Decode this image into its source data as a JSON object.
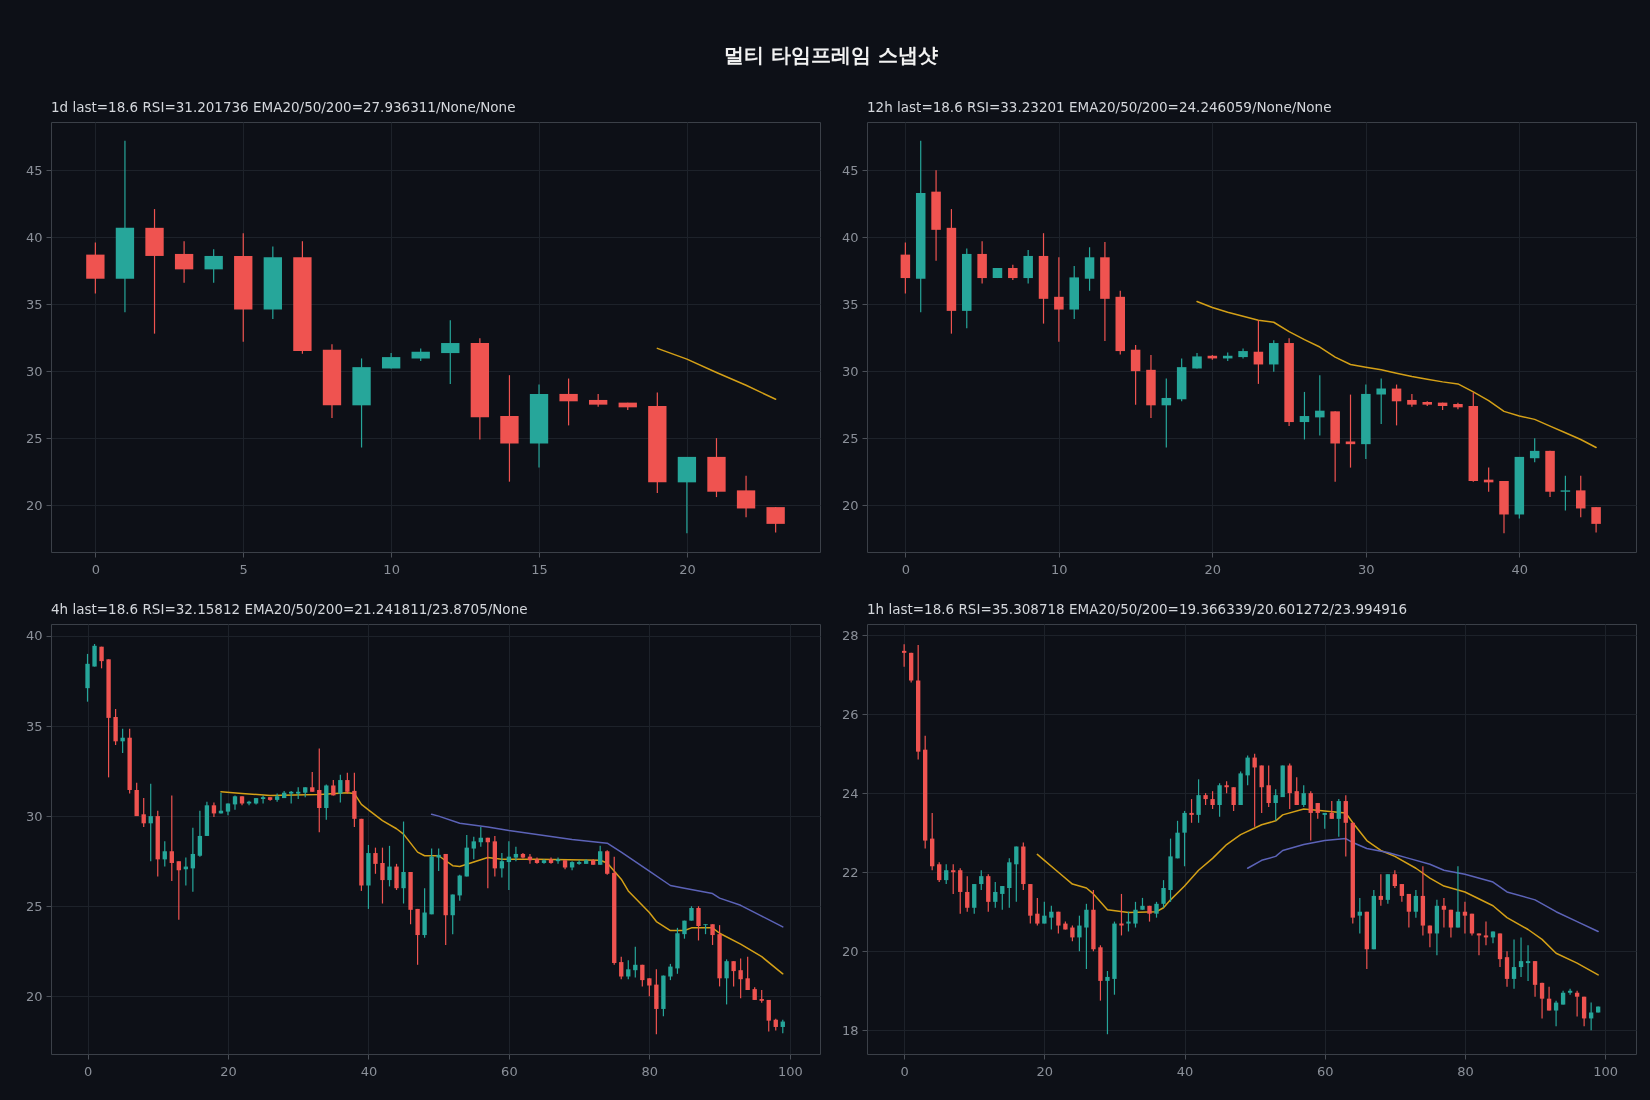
{
  "chart_data": [
    {
      "type": "other",
      "title": "멀티 타임프레임 스냅샷"
    },
    {
      "type": "candlestick",
      "title": "1d  last=18.6  RSI=31.201736  EMA20/50/200=27.936311/None/None",
      "grid": true,
      "xlim": [
        -1.5,
        24.5
      ],
      "ylim": [
        16.5,
        48.6
      ],
      "xticks": [
        0,
        5,
        10,
        15,
        20
      ],
      "yticks": [
        20,
        25,
        30,
        35,
        40,
        45
      ],
      "x": [
        0,
        1,
        2,
        3,
        4,
        5,
        6,
        7,
        8,
        9,
        10,
        11,
        12,
        13,
        14,
        15,
        16,
        17,
        18,
        19,
        20,
        21,
        22,
        23
      ],
      "ohlc": [
        [
          38.7,
          39.6,
          35.8,
          36.9
        ],
        [
          36.9,
          47.2,
          34.4,
          40.7
        ],
        [
          40.7,
          42.1,
          32.8,
          38.6
        ],
        [
          38.75,
          39.7,
          36.6,
          37.6
        ],
        [
          37.6,
          39.1,
          36.6,
          38.6
        ],
        [
          38.6,
          40.3,
          32.2,
          34.6
        ],
        [
          34.6,
          39.3,
          33.9,
          38.5
        ],
        [
          38.5,
          39.7,
          31.3,
          31.5
        ],
        [
          31.6,
          32.0,
          26.5,
          27.45
        ],
        [
          27.45,
          30.95,
          24.3,
          30.3
        ],
        [
          30.2,
          31.35,
          30.2,
          31.05
        ],
        [
          30.95,
          31.7,
          30.75,
          31.45
        ],
        [
          31.35,
          33.8,
          29.05,
          32.1
        ],
        [
          32.1,
          32.45,
          24.9,
          26.55
        ],
        [
          26.65,
          29.7,
          21.75,
          24.6
        ],
        [
          24.6,
          29.0,
          22.8,
          28.3
        ],
        [
          28.3,
          29.45,
          25.95,
          27.75
        ],
        [
          27.85,
          28.3,
          27.35,
          27.5
        ],
        [
          27.65,
          27.65,
          27.1,
          27.3
        ],
        [
          27.4,
          28.4,
          20.9,
          21.7
        ],
        [
          21.7,
          23.6,
          17.9,
          23.6
        ],
        [
          23.6,
          25.0,
          20.6,
          21.0
        ],
        [
          21.1,
          22.2,
          19.1,
          19.75
        ],
        [
          19.85,
          19.85,
          17.95,
          18.6
        ]
      ],
      "series": [
        {
          "type": "line",
          "color": "#d4a017",
          "x": [
            19,
            20,
            21,
            22,
            23
          ],
          "values": [
            31.7,
            30.9,
            29.9,
            28.95,
            27.9
          ]
        }
      ]
    },
    {
      "type": "candlestick",
      "title": "12h  last=18.6  RSI=33.23201  EMA20/50/200=24.246059/None/None",
      "grid": true,
      "xlim": [
        -2.5,
        47.6
      ],
      "ylim": [
        16.5,
        48.6
      ],
      "xticks": [
        0,
        10,
        20,
        30,
        40
      ],
      "yticks": [
        20,
        25,
        30,
        35,
        40,
        45
      ],
      "x": [
        0,
        1,
        2,
        3,
        4,
        5,
        6,
        7,
        8,
        9,
        10,
        11,
        12,
        13,
        14,
        15,
        16,
        17,
        18,
        19,
        20,
        21,
        22,
        23,
        24,
        25,
        26,
        27,
        28,
        29,
        30,
        31,
        32,
        33,
        34,
        35,
        36,
        37,
        38,
        39,
        40,
        41,
        42,
        43,
        44,
        45
      ],
      "ohlc": [
        [
          38.7,
          39.6,
          35.8,
          36.95
        ],
        [
          36.9,
          47.2,
          34.4,
          43.3
        ],
        [
          43.4,
          45.0,
          38.25,
          40.55
        ],
        [
          40.7,
          42.1,
          32.8,
          34.5
        ],
        [
          34.5,
          39.15,
          33.2,
          38.75
        ],
        [
          38.75,
          39.7,
          36.55,
          36.95
        ],
        [
          36.95,
          37.7,
          36.95,
          37.7
        ],
        [
          37.7,
          37.95,
          36.8,
          36.95
        ],
        [
          36.95,
          39.05,
          36.55,
          38.6
        ],
        [
          38.6,
          40.3,
          33.55,
          35.4
        ],
        [
          35.55,
          38.5,
          32.2,
          34.6
        ],
        [
          34.6,
          37.85,
          33.9,
          37.0
        ],
        [
          36.9,
          39.25,
          36.0,
          38.5
        ],
        [
          38.5,
          39.65,
          32.25,
          35.4
        ],
        [
          35.55,
          36.0,
          31.25,
          31.5
        ],
        [
          31.6,
          31.95,
          27.5,
          30.0
        ],
        [
          30.1,
          31.2,
          26.5,
          27.45
        ],
        [
          27.45,
          29.45,
          24.3,
          28.0
        ],
        [
          27.9,
          30.95,
          27.75,
          30.3
        ],
        [
          30.2,
          31.35,
          30.2,
          31.1
        ],
        [
          31.15,
          31.2,
          30.85,
          30.95
        ],
        [
          30.95,
          31.4,
          30.75,
          31.15
        ],
        [
          31.05,
          31.7,
          30.95,
          31.5
        ],
        [
          31.45,
          33.8,
          29.05,
          30.5
        ],
        [
          30.5,
          32.3,
          29.95,
          32.1
        ],
        [
          32.1,
          32.45,
          25.9,
          26.2
        ],
        [
          26.2,
          28.45,
          24.9,
          26.65
        ],
        [
          26.55,
          29.7,
          25.2,
          27.05
        ],
        [
          27.0,
          27.0,
          21.75,
          24.6
        ],
        [
          24.75,
          28.25,
          22.8,
          24.55
        ],
        [
          24.55,
          29.0,
          23.45,
          28.3
        ],
        [
          28.25,
          29.45,
          26.05,
          28.7
        ],
        [
          28.7,
          29.0,
          25.95,
          27.75
        ],
        [
          27.85,
          28.3,
          27.35,
          27.5
        ],
        [
          27.7,
          27.75,
          27.4,
          27.5
        ],
        [
          27.65,
          27.65,
          27.1,
          27.4
        ],
        [
          27.55,
          27.65,
          27.15,
          27.3
        ],
        [
          27.4,
          28.4,
          21.75,
          21.8
        ],
        [
          21.9,
          22.8,
          21.0,
          21.7
        ],
        [
          21.8,
          21.8,
          17.9,
          19.3
        ],
        [
          19.3,
          23.6,
          19.0,
          23.6
        ],
        [
          23.5,
          25.0,
          23.2,
          24.05
        ],
        [
          24.05,
          24.05,
          20.6,
          21.0
        ],
        [
          21.0,
          22.2,
          19.6,
          21.1
        ],
        [
          21.1,
          22.2,
          19.1,
          19.75
        ],
        [
          19.85,
          19.85,
          17.95,
          18.6
        ]
      ],
      "series": [
        {
          "type": "line",
          "color": "#d4a017",
          "x": [
            19,
            20,
            21,
            22,
            23,
            24,
            25,
            26,
            27,
            28,
            29,
            30,
            31,
            32,
            33,
            34,
            35,
            36,
            37,
            38,
            39,
            40,
            41,
            42,
            43,
            44,
            45
          ],
          "values": [
            35.2,
            34.75,
            34.4,
            34.1,
            33.8,
            33.65,
            32.95,
            32.35,
            31.8,
            31.05,
            30.5,
            30.3,
            30.1,
            29.85,
            29.6,
            29.4,
            29.2,
            29.05,
            28.45,
            27.8,
            27.0,
            26.65,
            26.4,
            25.9,
            25.4,
            24.9,
            24.3
          ]
        }
      ]
    },
    {
      "type": "candlestick",
      "title": "4h  last=18.6  RSI=32.15812  EMA20/50/200=21.241811/23.8705/None",
      "grid": true,
      "xlim": [
        -5.2,
        104.3
      ],
      "ylim": [
        16.8,
        40.66
      ],
      "xticks": [
        0,
        20,
        40,
        60,
        80,
        100
      ],
      "yticks": [
        20,
        25,
        30,
        35,
        40
      ],
      "x": [
        0,
        1,
        2,
        3,
        4,
        5,
        6,
        7,
        8,
        9,
        10,
        11,
        12,
        13,
        14,
        15,
        16,
        17,
        18,
        19,
        20,
        21,
        22,
        23,
        24,
        25,
        26,
        27,
        28,
        29,
        30,
        31,
        32,
        33,
        34,
        35,
        36,
        37,
        38,
        39,
        40,
        41,
        42,
        43,
        44,
        45,
        46,
        47,
        48,
        49,
        50,
        51,
        52,
        53,
        54,
        55,
        56,
        57,
        58,
        59,
        60,
        61,
        62,
        63,
        64,
        65,
        66,
        67,
        68,
        69,
        70,
        71,
        72,
        73,
        74,
        75,
        76,
        77,
        78,
        79,
        80,
        81,
        82,
        83,
        84,
        85,
        86,
        87,
        88,
        89,
        90,
        91,
        92,
        93,
        94,
        95,
        96,
        97,
        98,
        99
      ],
      "ohlc": [
        [
          37.1,
          39.0,
          36.35,
          38.45
        ],
        [
          38.3,
          39.55,
          38.3,
          39.45
        ],
        [
          39.4,
          39.4,
          38.2,
          38.6
        ],
        [
          38.7,
          38.7,
          32.15,
          35.45
        ],
        [
          35.5,
          35.95,
          33.95,
          34.15
        ],
        [
          34.15,
          34.85,
          33.5,
          34.35
        ],
        [
          34.35,
          34.85,
          31.25,
          31.45
        ],
        [
          31.45,
          31.85,
          30.0,
          30.0
        ],
        [
          30.1,
          31.0,
          29.4,
          29.6
        ],
        [
          29.6,
          31.8,
          27.5,
          30.0
        ],
        [
          30.0,
          30.3,
          26.65,
          27.6
        ],
        [
          27.6,
          28.6,
          27.2,
          28.05
        ],
        [
          28.05,
          31.15,
          26.4,
          27.4
        ],
        [
          27.5,
          27.5,
          24.25,
          27.0
        ],
        [
          27.05,
          27.7,
          26.15,
          27.2
        ],
        [
          27.1,
          29.35,
          25.8,
          27.9
        ],
        [
          27.8,
          30.3,
          27.75,
          28.9
        ],
        [
          28.9,
          30.8,
          28.9,
          30.6
        ],
        [
          30.6,
          30.75,
          29.95,
          30.15
        ],
        [
          30.15,
          31.3,
          30.15,
          30.3
        ],
        [
          30.25,
          30.7,
          30.05,
          30.7
        ],
        [
          30.65,
          31.15,
          30.35,
          31.1
        ],
        [
          31.1,
          31.1,
          30.6,
          30.7
        ],
        [
          30.7,
          30.85,
          30.6,
          30.8
        ],
        [
          30.7,
          31.0,
          30.65,
          31.0
        ],
        [
          30.95,
          31.15,
          30.7,
          31.05
        ],
        [
          31.05,
          31.05,
          30.85,
          30.9
        ],
        [
          30.9,
          31.25,
          30.8,
          31.1
        ],
        [
          31.0,
          31.4,
          31.0,
          31.3
        ],
        [
          31.25,
          31.4,
          30.7,
          31.35
        ],
        [
          31.25,
          31.6,
          30.95,
          31.35
        ],
        [
          31.3,
          31.6,
          31.05,
          31.6
        ],
        [
          31.6,
          32.45,
          31.35,
          31.35
        ],
        [
          31.45,
          33.75,
          29.1,
          30.45
        ],
        [
          30.45,
          31.75,
          29.8,
          31.7
        ],
        [
          31.7,
          32.0,
          31.15,
          31.15
        ],
        [
          31.25,
          32.3,
          30.75,
          32.0
        ],
        [
          32.0,
          32.4,
          31.25,
          31.35
        ],
        [
          31.4,
          32.4,
          29.4,
          29.85
        ],
        [
          29.85,
          29.85,
          25.85,
          26.15
        ],
        [
          26.15,
          28.4,
          24.85,
          27.95
        ],
        [
          27.95,
          28.25,
          26.8,
          27.35
        ],
        [
          27.4,
          28.25,
          25.15,
          26.45
        ],
        [
          26.45,
          28.35,
          26.1,
          27.2
        ],
        [
          27.2,
          27.35,
          25.9,
          26.0
        ],
        [
          26.0,
          29.7,
          25.15,
          26.9
        ],
        [
          26.9,
          26.9,
          24.0,
          24.8
        ],
        [
          24.85,
          24.85,
          21.75,
          23.4
        ],
        [
          23.4,
          26.0,
          23.25,
          24.65
        ],
        [
          24.55,
          28.2,
          24.55,
          27.75
        ],
        [
          27.7,
          28.2,
          26.95,
          27.85
        ],
        [
          27.9,
          27.9,
          22.85,
          24.5
        ],
        [
          24.5,
          25.65,
          23.45,
          25.65
        ],
        [
          25.6,
          26.75,
          25.3,
          26.7
        ],
        [
          26.65,
          28.95,
          26.65,
          28.25
        ],
        [
          28.2,
          28.85,
          27.6,
          28.6
        ],
        [
          28.55,
          29.4,
          28.3,
          28.8
        ],
        [
          28.8,
          28.8,
          26.0,
          28.55
        ],
        [
          28.6,
          28.9,
          26.65,
          27.1
        ],
        [
          27.1,
          27.95,
          26.6,
          27.5
        ],
        [
          27.45,
          28.6,
          25.9,
          27.75
        ],
        [
          27.7,
          28.3,
          27.5,
          27.9
        ],
        [
          27.9,
          27.95,
          27.65,
          27.7
        ],
        [
          27.75,
          27.9,
          27.35,
          27.55
        ],
        [
          27.6,
          27.7,
          27.35,
          27.4
        ],
        [
          27.4,
          27.6,
          27.35,
          27.55
        ],
        [
          27.6,
          27.7,
          27.35,
          27.4
        ],
        [
          27.5,
          27.7,
          27.35,
          27.6
        ],
        [
          27.55,
          27.55,
          27.05,
          27.15
        ],
        [
          27.15,
          27.5,
          27.0,
          27.45
        ],
        [
          27.35,
          27.55,
          27.3,
          27.45
        ],
        [
          27.35,
          27.6,
          27.35,
          27.55
        ],
        [
          27.55,
          27.6,
          27.3,
          27.3
        ],
        [
          27.3,
          28.35,
          27.3,
          28.05
        ],
        [
          28.05,
          28.1,
          26.75,
          26.8
        ],
        [
          26.85,
          27.75,
          21.75,
          21.85
        ],
        [
          21.9,
          22.2,
          20.95,
          21.1
        ],
        [
          21.1,
          22.0,
          20.95,
          21.5
        ],
        [
          21.45,
          22.75,
          21.05,
          21.75
        ],
        [
          21.75,
          21.75,
          20.55,
          20.9
        ],
        [
          21.0,
          21.0,
          20.0,
          20.6
        ],
        [
          20.65,
          21.5,
          17.9,
          19.3
        ],
        [
          19.3,
          21.15,
          18.9,
          21.15
        ],
        [
          21.1,
          21.8,
          20.9,
          21.65
        ],
        [
          21.55,
          23.8,
          21.25,
          23.5
        ],
        [
          23.45,
          24.2,
          23.2,
          24.2
        ],
        [
          24.2,
          25.0,
          24.2,
          24.9
        ],
        [
          24.9,
          25.0,
          23.1,
          23.9
        ],
        [
          23.95,
          24.0,
          23.45,
          24.0
        ],
        [
          24.0,
          24.0,
          22.85,
          23.4
        ],
        [
          23.45,
          23.95,
          20.55,
          21.0
        ],
        [
          21.0,
          22.05,
          19.55,
          21.95
        ],
        [
          21.95,
          21.95,
          20.55,
          21.4
        ],
        [
          21.45,
          22.1,
          19.9,
          20.95
        ],
        [
          21.0,
          22.2,
          20.35,
          20.35
        ],
        [
          20.4,
          20.5,
          19.8,
          19.8
        ],
        [
          19.85,
          20.35,
          19.65,
          19.75
        ],
        [
          19.8,
          19.8,
          18.05,
          18.65
        ],
        [
          18.7,
          18.75,
          18.1,
          18.3
        ],
        [
          18.3,
          18.7,
          17.95,
          18.6
        ]
      ],
      "series": [
        {
          "type": "line",
          "color": "#d4a017",
          "x": [
            19,
            22,
            26,
            33,
            37,
            38,
            39,
            40,
            42,
            44,
            45,
            47,
            48,
            50,
            52,
            53,
            55,
            57,
            59,
            64,
            73,
            74,
            76,
            77,
            80,
            81,
            83,
            85,
            86,
            89,
            90,
            93,
            96,
            99
          ],
          "values": [
            31.35,
            31.25,
            31.15,
            31.2,
            31.3,
            31.25,
            30.65,
            30.35,
            29.75,
            29.3,
            29.0,
            28.0,
            27.8,
            27.8,
            27.25,
            27.2,
            27.45,
            27.7,
            27.6,
            27.6,
            27.55,
            27.4,
            26.5,
            25.85,
            24.65,
            24.15,
            23.65,
            23.65,
            23.8,
            23.8,
            23.5,
            22.9,
            22.2,
            21.25
          ]
        },
        {
          "type": "line",
          "color": "#5c63b8",
          "x": [
            49,
            50,
            53,
            57,
            60,
            69,
            74,
            76,
            80,
            83,
            85,
            89,
            90,
            93,
            96,
            99
          ],
          "values": [
            30.1,
            30.0,
            29.6,
            29.4,
            29.2,
            28.7,
            28.5,
            28.0,
            26.95,
            26.15,
            26.0,
            25.7,
            25.45,
            25.05,
            24.45,
            23.85
          ]
        }
      ]
    },
    {
      "type": "candlestick",
      "title": "1h  last=18.6  RSI=35.308718  EMA20/50/200=19.366339/20.601272/23.994916",
      "grid": true,
      "xlim": [
        -5.3,
        104.4
      ],
      "ylim": [
        17.4,
        28.28
      ],
      "xticks": [
        0,
        20,
        40,
        60,
        80,
        100
      ],
      "yticks": [
        18,
        20,
        22,
        24,
        26,
        28
      ],
      "x": [
        0,
        1,
        2,
        3,
        4,
        5,
        6,
        7,
        8,
        9,
        10,
        11,
        12,
        13,
        14,
        15,
        16,
        17,
        18,
        19,
        20,
        21,
        22,
        23,
        24,
        25,
        26,
        27,
        28,
        29,
        30,
        31,
        32,
        33,
        34,
        35,
        36,
        37,
        38,
        39,
        40,
        41,
        42,
        43,
        44,
        45,
        46,
        47,
        48,
        49,
        50,
        51,
        52,
        53,
        54,
        55,
        56,
        57,
        58,
        59,
        60,
        61,
        62,
        63,
        64,
        65,
        66,
        67,
        68,
        69,
        70,
        71,
        72,
        73,
        74,
        75,
        76,
        77,
        78,
        79,
        80,
        81,
        82,
        83,
        84,
        85,
        86,
        87,
        88,
        89,
        90,
        91,
        92,
        93,
        94,
        95,
        96,
        97,
        98,
        99
      ],
      "ohlc": [
        [
          27.6,
          27.77,
          27.2,
          27.55
        ],
        [
          27.55,
          27.55,
          26.8,
          26.85
        ],
        [
          26.85,
          27.75,
          24.85,
          25.05
        ],
        [
          25.1,
          25.45,
          22.6,
          22.8
        ],
        [
          22.85,
          23.5,
          22.05,
          22.15
        ],
        [
          22.2,
          22.25,
          21.75,
          21.8
        ],
        [
          21.8,
          22.2,
          21.7,
          22.05
        ],
        [
          22.05,
          22.2,
          21.45,
          22.0
        ],
        [
          22.05,
          22.1,
          20.95,
          21.5
        ],
        [
          21.5,
          21.9,
          21.0,
          21.1
        ],
        [
          21.1,
          21.7,
          20.95,
          21.7
        ],
        [
          21.7,
          22.05,
          21.55,
          21.9
        ],
        [
          21.9,
          21.95,
          21.0,
          21.25
        ],
        [
          21.25,
          21.75,
          21.1,
          21.5
        ],
        [
          21.45,
          21.65,
          21.05,
          21.65
        ],
        [
          21.6,
          22.35,
          21.1,
          22.25
        ],
        [
          22.2,
          22.65,
          21.25,
          22.65
        ],
        [
          22.65,
          22.75,
          21.55,
          21.7
        ],
        [
          21.7,
          21.7,
          20.7,
          20.9
        ],
        [
          20.95,
          21.35,
          20.65,
          20.7
        ],
        [
          20.7,
          21.25,
          20.7,
          20.9
        ],
        [
          20.85,
          21.15,
          20.55,
          21.0
        ],
        [
          21.0,
          21.0,
          20.45,
          20.65
        ],
        [
          20.7,
          20.75,
          20.55,
          20.55
        ],
        [
          20.6,
          20.65,
          20.25,
          20.35
        ],
        [
          20.35,
          20.9,
          20.0,
          20.65
        ],
        [
          20.6,
          21.2,
          19.55,
          21.05
        ],
        [
          21.05,
          21.55,
          20.0,
          20.05
        ],
        [
          20.1,
          20.15,
          18.75,
          19.25
        ],
        [
          19.25,
          19.5,
          17.9,
          19.35
        ],
        [
          19.3,
          20.75,
          18.9,
          20.7
        ],
        [
          20.7,
          21.45,
          20.4,
          20.65
        ],
        [
          20.7,
          21.0,
          20.5,
          20.75
        ],
        [
          20.7,
          21.25,
          20.6,
          21.05
        ],
        [
          21.05,
          21.35,
          21.05,
          21.15
        ],
        [
          21.15,
          21.15,
          20.75,
          20.95
        ],
        [
          20.95,
          21.25,
          20.85,
          21.2
        ],
        [
          21.2,
          21.8,
          21.1,
          21.6
        ],
        [
          21.55,
          22.85,
          21.25,
          22.4
        ],
        [
          22.35,
          23.3,
          22.35,
          23.0
        ],
        [
          23.0,
          23.55,
          22.15,
          23.5
        ],
        [
          23.5,
          23.85,
          23.25,
          23.45
        ],
        [
          23.45,
          24.35,
          23.25,
          23.95
        ],
        [
          23.95,
          24.0,
          23.7,
          23.85
        ],
        [
          23.85,
          24.05,
          23.6,
          23.7
        ],
        [
          23.7,
          24.25,
          23.4,
          24.2
        ],
        [
          24.2,
          24.3,
          24.0,
          24.15
        ],
        [
          24.15,
          24.15,
          23.55,
          23.7
        ],
        [
          23.7,
          24.55,
          23.7,
          24.5
        ],
        [
          24.45,
          24.95,
          24.2,
          24.9
        ],
        [
          24.9,
          25.0,
          23.15,
          24.65
        ],
        [
          24.7,
          24.7,
          23.5,
          24.15
        ],
        [
          24.2,
          24.7,
          23.65,
          23.75
        ],
        [
          23.75,
          24.1,
          23.3,
          23.95
        ],
        [
          23.9,
          24.7,
          23.9,
          24.7
        ],
        [
          24.7,
          24.75,
          23.6,
          24.0
        ],
        [
          24.05,
          24.4,
          23.7,
          23.7
        ],
        [
          23.7,
          24.2,
          23.65,
          24.0
        ],
        [
          24.0,
          24.05,
          22.8,
          23.5
        ],
        [
          23.75,
          23.75,
          23.35,
          23.5
        ],
        [
          23.45,
          23.5,
          23.1,
          23.5
        ],
        [
          23.5,
          23.8,
          23.35,
          23.35
        ],
        [
          23.35,
          23.85,
          22.9,
          23.8
        ],
        [
          23.8,
          23.95,
          22.4,
          23.25
        ],
        [
          23.25,
          23.25,
          20.7,
          20.85
        ],
        [
          20.9,
          21.35,
          20.45,
          21.0
        ],
        [
          21.0,
          21.0,
          19.55,
          20.05
        ],
        [
          20.05,
          21.55,
          20.05,
          21.4
        ],
        [
          21.4,
          21.95,
          21.15,
          21.3
        ],
        [
          21.3,
          21.95,
          21.2,
          21.95
        ],
        [
          21.95,
          22.05,
          21.6,
          21.65
        ],
        [
          21.7,
          21.7,
          21.25,
          21.4
        ],
        [
          21.45,
          21.45,
          20.6,
          21.0
        ],
        [
          21.0,
          21.55,
          20.85,
          21.4
        ],
        [
          21.4,
          22.15,
          20.4,
          20.65
        ],
        [
          20.65,
          20.65,
          20.1,
          20.45
        ],
        [
          20.45,
          21.3,
          19.9,
          21.15
        ],
        [
          21.15,
          21.35,
          20.6,
          21.05
        ],
        [
          21.05,
          21.05,
          20.35,
          20.6
        ],
        [
          20.6,
          22.15,
          20.6,
          21.0
        ],
        [
          21.0,
          21.25,
          20.45,
          20.9
        ],
        [
          20.95,
          20.95,
          20.4,
          20.45
        ],
        [
          20.45,
          20.45,
          19.9,
          20.4
        ],
        [
          20.4,
          20.75,
          20.15,
          20.35
        ],
        [
          20.35,
          20.5,
          20.2,
          20.5
        ],
        [
          20.45,
          20.45,
          19.6,
          19.8
        ],
        [
          19.85,
          20.0,
          19.1,
          19.3
        ],
        [
          19.3,
          20.3,
          19.05,
          19.6
        ],
        [
          19.6,
          20.35,
          19.35,
          19.75
        ],
        [
          19.7,
          20.15,
          19.25,
          19.75
        ],
        [
          19.75,
          19.75,
          18.85,
          19.15
        ],
        [
          19.2,
          19.2,
          18.3,
          18.8
        ],
        [
          18.8,
          19.1,
          18.5,
          18.5
        ],
        [
          18.5,
          18.75,
          18.1,
          18.7
        ],
        [
          18.65,
          19.0,
          18.65,
          18.95
        ],
        [
          18.95,
          19.05,
          18.9,
          19.0
        ],
        [
          18.95,
          19.0,
          18.35,
          18.85
        ],
        [
          18.85,
          18.85,
          18.1,
          18.3
        ],
        [
          18.3,
          18.7,
          18.0,
          18.45
        ],
        [
          18.45,
          18.6,
          18.45,
          18.6
        ]
      ],
      "series": [
        {
          "type": "line",
          "color": "#d4a017",
          "x": [
            19,
            20,
            22,
            24,
            26,
            27,
            29,
            32,
            36,
            37,
            38,
            40,
            42,
            44,
            46,
            48,
            51,
            53,
            54,
            57,
            60,
            63,
            64,
            66,
            68,
            70,
            73,
            75,
            77,
            80,
            84,
            86,
            89,
            91,
            93,
            96,
            99
          ],
          "values": [
            22.45,
            22.3,
            22.0,
            21.7,
            21.6,
            21.45,
            21.05,
            20.98,
            21.0,
            21.1,
            21.3,
            21.65,
            22.05,
            22.35,
            22.7,
            22.95,
            23.2,
            23.3,
            23.45,
            23.6,
            23.55,
            23.5,
            23.25,
            22.8,
            22.55,
            22.4,
            22.1,
            21.85,
            21.65,
            21.5,
            21.15,
            20.85,
            20.55,
            20.3,
            19.95,
            19.7,
            19.4
          ]
        },
        {
          "type": "line",
          "color": "#5c63b8",
          "x": [
            49,
            51,
            53,
            54,
            57,
            60,
            63,
            64,
            66,
            69,
            72,
            75,
            77,
            80,
            84,
            86,
            90,
            93,
            96,
            99
          ],
          "values": [
            22.1,
            22.3,
            22.4,
            22.55,
            22.7,
            22.8,
            22.85,
            22.75,
            22.6,
            22.5,
            22.35,
            22.2,
            22.05,
            21.95,
            21.75,
            21.5,
            21.3,
            21.0,
            20.75,
            20.5
          ]
        }
      ]
    }
  ]
}
